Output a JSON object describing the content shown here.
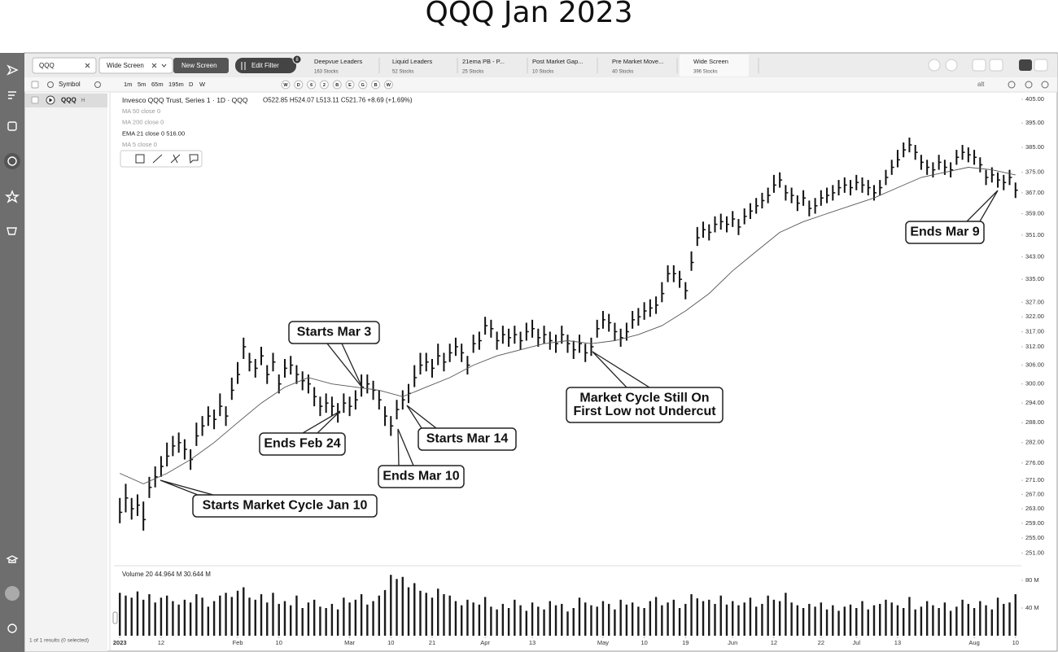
{
  "ui": {
    "search": "QQQ",
    "screens": [
      "Wide Screen",
      "New Screen"
    ],
    "edit_filter": "Edit Filter",
    "filter_count": "8",
    "tabs": [
      {
        "name": "Deepvue Leaders",
        "count": "163 Stocks"
      },
      {
        "name": "Liquid Leaders",
        "count": "52 Stocks"
      },
      {
        "name": "21ema PB - P...",
        "count": "25 Stocks"
      },
      {
        "name": "Post Market Gap...",
        "count": "10 Stocks"
      },
      {
        "name": "Pre Market Move...",
        "count": "40 Stocks"
      },
      {
        "name": "Wide Screen",
        "count": "396 Stocks"
      }
    ],
    "symbol_header": "Symbol",
    "symbol_row": "QQQ",
    "symbol_badge": "H",
    "results": "1 of 1 results (0 selected)",
    "timeframes": [
      "1m",
      "5m",
      "65m",
      "195m",
      "D",
      "W"
    ],
    "toolbar_letters": [
      "W",
      "D",
      "6",
      "2",
      "B",
      "E",
      "G",
      "B",
      "W"
    ],
    "alt": "alt",
    "legend_name": "Invesco QQQ Trust, Series 1 · 1D · QQQ",
    "legend_ohlc": "O522.85  H524.07  L513.11  C521.76  +8.69 (+1.69%)",
    "indicators": [
      "MA 50 close 0",
      "MA 200 close 0",
      "EMA 21 close 0  516.00",
      "MA 5 close 0"
    ],
    "volume_header": "Volume 20  44.964 M  30.644 M"
  },
  "chart_data": {
    "type": "ohlc",
    "title": "QQQ Jan 2023",
    "log_scale": true,
    "color": "#111111",
    "xlim": [
      -1,
      153
    ],
    "xticks": [
      {
        "value": 0,
        "label": "2023"
      },
      {
        "value": 7,
        "label": "12"
      },
      {
        "value": 20,
        "label": "Feb"
      },
      {
        "value": 27,
        "label": "10"
      },
      {
        "value": 39,
        "label": "Mar"
      },
      {
        "value": 46,
        "label": "10"
      },
      {
        "value": 53,
        "label": "21"
      },
      {
        "value": 62,
        "label": "Apr"
      },
      {
        "value": 70,
        "label": "13"
      },
      {
        "value": 82,
        "label": "May"
      },
      {
        "value": 89,
        "label": "10"
      },
      {
        "value": 96,
        "label": "19"
      },
      {
        "value": 104,
        "label": "Jun"
      },
      {
        "value": 111,
        "label": "12"
      },
      {
        "value": 119,
        "label": "22"
      },
      {
        "value": 125,
        "label": "Jul"
      },
      {
        "value": 132,
        "label": "13"
      },
      {
        "value": 145,
        "label": "Aug"
      },
      {
        "value": 152,
        "label": "10"
      }
    ],
    "ylim": [
      249,
      408
    ],
    "yticks": [
      {
        "value": 405,
        "label": "405.00"
      },
      {
        "value": 395,
        "label": "395.00"
      },
      {
        "value": 385,
        "label": "385.00"
      },
      {
        "value": 375,
        "label": "375.00"
      },
      {
        "value": 367,
        "label": "367.00"
      },
      {
        "value": 359,
        "label": "359.00"
      },
      {
        "value": 351,
        "label": "351.00"
      },
      {
        "value": 343,
        "label": "343.00"
      },
      {
        "value": 335,
        "label": "335.00"
      },
      {
        "value": 327,
        "label": "327.00"
      },
      {
        "value": 322,
        "label": "322.00"
      },
      {
        "value": 317,
        "label": "317.00"
      },
      {
        "value": 312,
        "label": "312.00"
      },
      {
        "value": 306,
        "label": "306.00"
      },
      {
        "value": 300,
        "label": "300.00"
      },
      {
        "value": 294,
        "label": "294.00"
      },
      {
        "value": 288,
        "label": "288.00"
      },
      {
        "value": 282,
        "label": "282.00"
      },
      {
        "value": 276,
        "label": "276.00"
      },
      {
        "value": 271,
        "label": "271.00"
      },
      {
        "value": 267,
        "label": "267.00"
      },
      {
        "value": 263,
        "label": "263.00"
      },
      {
        "value": 259,
        "label": "259.00"
      },
      {
        "value": 255,
        "label": "255.00"
      },
      {
        "value": 251,
        "label": "251.00"
      }
    ],
    "high": [
      266,
      270,
      266,
      267,
      265,
      272,
      275,
      278,
      282,
      284,
      285,
      283,
      280,
      288,
      290,
      293,
      292,
      297,
      293,
      302,
      307,
      315,
      310,
      308,
      312,
      306,
      310,
      303,
      308,
      309,
      306,
      304,
      303,
      299,
      296,
      297,
      296,
      294,
      297,
      296,
      298,
      303,
      303,
      301,
      298,
      293,
      290,
      295,
      298,
      300,
      306,
      310,
      310,
      308,
      313,
      310,
      313,
      315,
      313,
      309,
      316,
      317,
      322,
      321,
      317,
      319,
      318,
      319,
      317,
      320,
      321,
      318,
      319,
      317,
      316,
      319,
      316,
      314,
      316,
      313,
      315,
      321,
      324,
      323,
      320,
      318,
      320,
      324,
      325,
      327,
      328,
      329,
      334,
      340,
      340,
      338,
      334,
      345,
      354,
      356,
      355,
      358,
      359,
      358,
      360,
      357,
      361,
      363,
      365,
      367,
      369,
      374,
      375,
      370,
      369,
      366,
      368,
      364,
      365,
      368,
      369,
      370,
      372,
      373,
      372,
      374,
      373,
      372,
      370,
      372,
      376,
      380,
      384,
      387,
      389,
      386,
      382,
      380,
      379,
      382,
      380,
      379,
      384,
      386,
      385,
      384,
      381,
      376,
      377,
      375,
      374,
      376,
      371
    ],
    "low": [
      259,
      262,
      260,
      261,
      257,
      266,
      269,
      272,
      275,
      278,
      279,
      277,
      274,
      281,
      284,
      287,
      286,
      290,
      287,
      295,
      300,
      308,
      304,
      302,
      306,
      300,
      304,
      297,
      302,
      303,
      300,
      298,
      297,
      293,
      290,
      291,
      290,
      288,
      291,
      290,
      292,
      296,
      297,
      295,
      292,
      287,
      284,
      289,
      292,
      294,
      299,
      303,
      304,
      302,
      306,
      304,
      307,
      309,
      307,
      303,
      310,
      311,
      316,
      315,
      311,
      313,
      312,
      313,
      311,
      314,
      315,
      312,
      313,
      311,
      310,
      313,
      310,
      308,
      310,
      307,
      309,
      315,
      318,
      317,
      314,
      312,
      314,
      318,
      319,
      321,
      322,
      323,
      327,
      334,
      334,
      332,
      328,
      338,
      347,
      350,
      349,
      352,
      353,
      352,
      354,
      351,
      355,
      357,
      359,
      361,
      363,
      367,
      369,
      364,
      363,
      360,
      362,
      358,
      359,
      362,
      363,
      364,
      366,
      367,
      366,
      368,
      367,
      366,
      364,
      366,
      370,
      374,
      377,
      381,
      383,
      380,
      376,
      374,
      373,
      376,
      374,
      373,
      378,
      380,
      379,
      378,
      375,
      370,
      371,
      369,
      368,
      370,
      365
    ],
    "close": [
      262,
      266,
      263,
      264,
      260,
      269,
      272,
      275,
      278,
      281,
      282,
      280,
      277,
      284,
      287,
      290,
      289,
      293,
      290,
      298,
      303,
      312,
      307,
      305,
      309,
      303,
      307,
      300,
      305,
      306,
      303,
      301,
      300,
      296,
      293,
      294,
      293,
      291,
      294,
      293,
      295,
      299,
      300,
      298,
      295,
      290,
      287,
      292,
      295,
      297,
      302,
      306,
      307,
      305,
      309,
      307,
      310,
      312,
      310,
      306,
      313,
      314,
      319,
      318,
      314,
      316,
      315,
      316,
      314,
      317,
      318,
      315,
      316,
      314,
      313,
      316,
      313,
      311,
      313,
      310,
      312,
      318,
      321,
      320,
      317,
      315,
      317,
      321,
      322,
      324,
      325,
      326,
      330,
      337,
      337,
      335,
      331,
      341,
      350,
      353,
      352,
      355,
      356,
      355,
      357,
      354,
      358,
      360,
      362,
      364,
      366,
      370,
      372,
      367,
      366,
      363,
      365,
      361,
      362,
      365,
      366,
      367,
      369,
      370,
      369,
      371,
      370,
      369,
      367,
      369,
      373,
      377,
      380,
      384,
      386,
      383,
      379,
      377,
      376,
      379,
      377,
      376,
      381,
      383,
      382,
      381,
      378,
      373,
      374,
      372,
      371,
      373,
      368
    ],
    "ema": {
      "color": "#555555",
      "x": [
        0,
        4,
        8,
        12,
        16,
        20,
        24,
        28,
        32,
        36,
        40,
        44,
        48,
        52,
        56,
        60,
        64,
        68,
        72,
        76,
        80,
        84,
        88,
        92,
        96,
        100,
        104,
        108,
        112,
        116,
        120,
        124,
        128,
        132,
        136,
        140,
        144,
        148,
        152
      ],
      "values": [
        273,
        270,
        273,
        277,
        282,
        288,
        294,
        299,
        302,
        300,
        299,
        298,
        296,
        299,
        302,
        306,
        309,
        311,
        313,
        314,
        313,
        314,
        316,
        319,
        324,
        330,
        338,
        345,
        352,
        356,
        359,
        362,
        365,
        369,
        373,
        375,
        377,
        376,
        374
      ]
    },
    "volume": {
      "color": "#1a1a1a",
      "ylim": [
        0,
        90
      ],
      "yticks": [
        {
          "value": 80,
          "label": "80 M"
        },
        {
          "value": 40,
          "label": "40 M"
        }
      ],
      "values": [
        62,
        58,
        55,
        64,
        52,
        60,
        48,
        55,
        58,
        50,
        45,
        52,
        48,
        60,
        55,
        42,
        50,
        58,
        62,
        56,
        65,
        70,
        55,
        52,
        60,
        48,
        62,
        46,
        50,
        44,
        58,
        40,
        48,
        52,
        42,
        40,
        46,
        38,
        55,
        48,
        52,
        60,
        45,
        50,
        58,
        66,
        88,
        82,
        85,
        70,
        76,
        65,
        62,
        55,
        68,
        60,
        58,
        50,
        44,
        52,
        48,
        45,
        56,
        42,
        38,
        46,
        40,
        52,
        44,
        36,
        48,
        42,
        38,
        50,
        44,
        46,
        35,
        40,
        55,
        48,
        44,
        42,
        50,
        46,
        38,
        52,
        45,
        48,
        42,
        40,
        50,
        56,
        44,
        48,
        52,
        40,
        46,
        60,
        54,
        50,
        52,
        46,
        58,
        45,
        50,
        44,
        48,
        55,
        42,
        46,
        58,
        52,
        50,
        62,
        48,
        44,
        40,
        46,
        42,
        48,
        38,
        44,
        36,
        42,
        45,
        40,
        50,
        38,
        44,
        46,
        52,
        48,
        44,
        40,
        56,
        38,
        42,
        50,
        44,
        40,
        48,
        36,
        42,
        52,
        46,
        40,
        50,
        44,
        38,
        55,
        46,
        48,
        60
      ]
    },
    "annotations": [
      [
        "Starts Market Cycle Jan 10"
      ],
      [
        "Ends Feb 24"
      ],
      [
        "Starts Mar 3"
      ],
      [
        "Ends Mar 10"
      ],
      [
        "Starts Mar 14"
      ],
      [
        "Market Cycle Still On",
        "First Low not Undercut"
      ],
      [
        "Ends Mar 9"
      ]
    ]
  }
}
